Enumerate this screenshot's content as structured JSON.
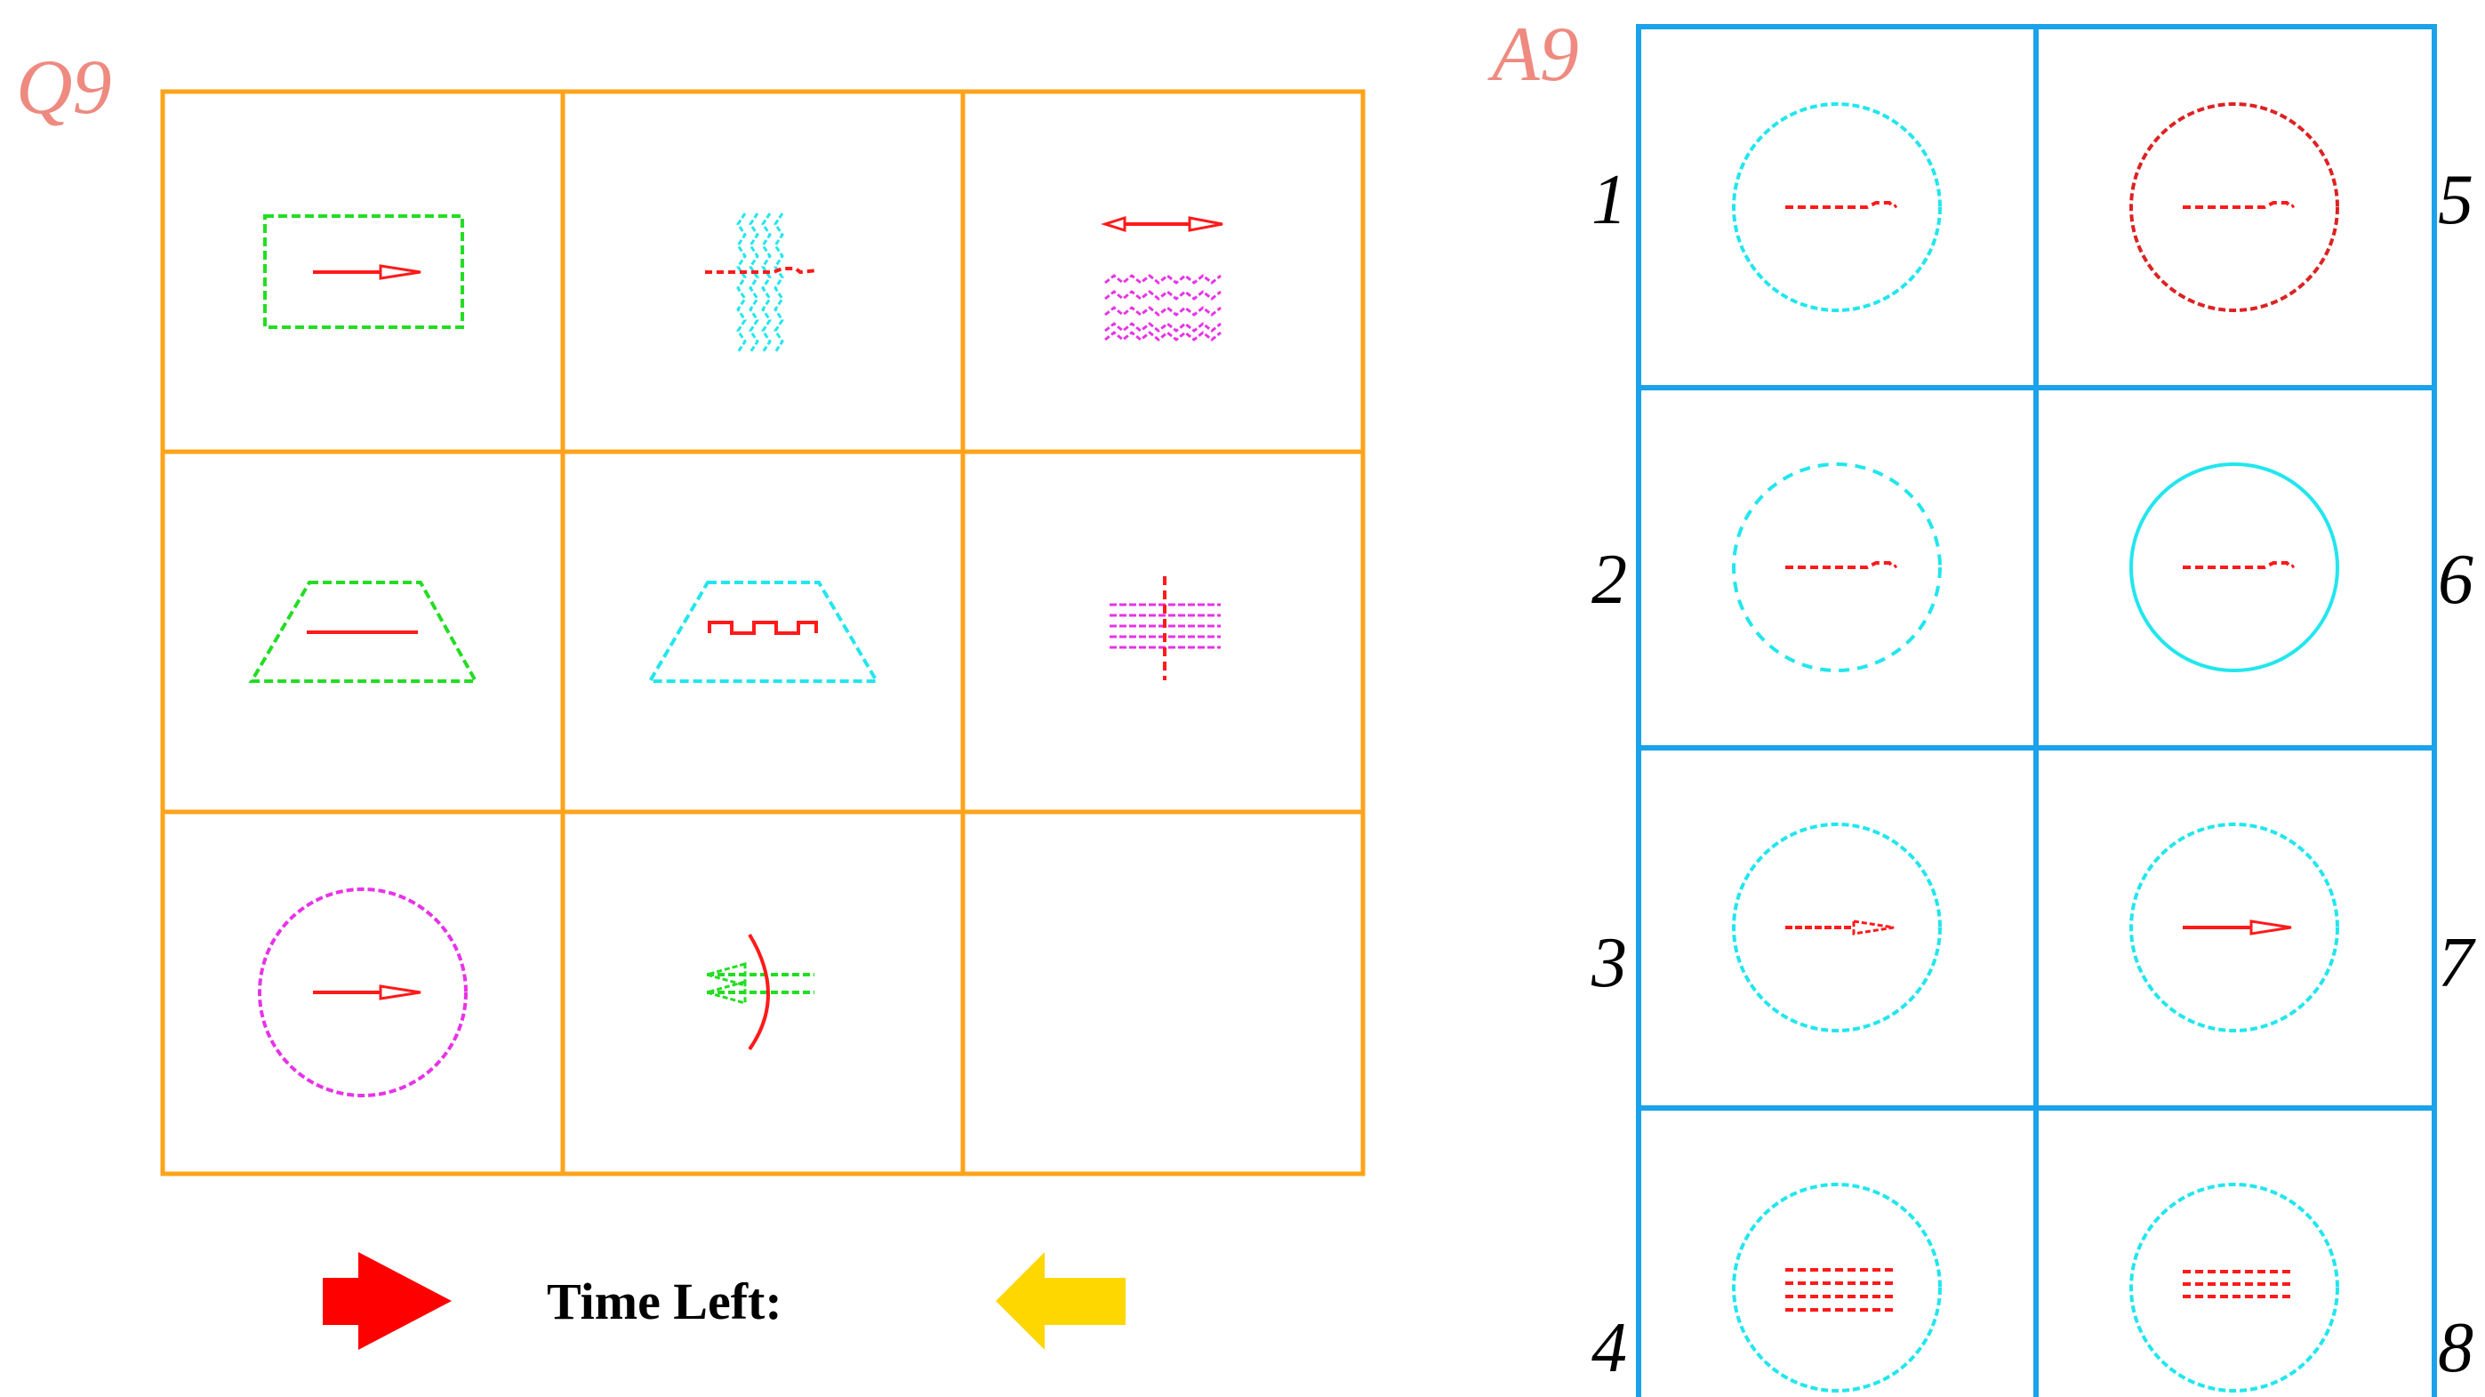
{
  "question": {
    "label": "Q9",
    "grid_color": "#ffa31a"
  },
  "answers": {
    "label": "A9",
    "grid_color": "#1aa2ea",
    "numbers": [
      "1",
      "2",
      "3",
      "4",
      "5",
      "6",
      "7",
      "8"
    ]
  },
  "footer": {
    "time_label": "Time Left:",
    "next_arrow_color": "#ff0000",
    "prev_arrow_color": "#ffd700"
  },
  "colors": {
    "label": "#ef8a80",
    "red": "#ff1a1a",
    "green": "#22dd22",
    "cyan": "#22e6ee",
    "magenta": "#e733e7",
    "darkred": "#dd2222"
  },
  "icons": {
    "next": "right-arrow-icon",
    "prev": "left-arrow-icon"
  }
}
